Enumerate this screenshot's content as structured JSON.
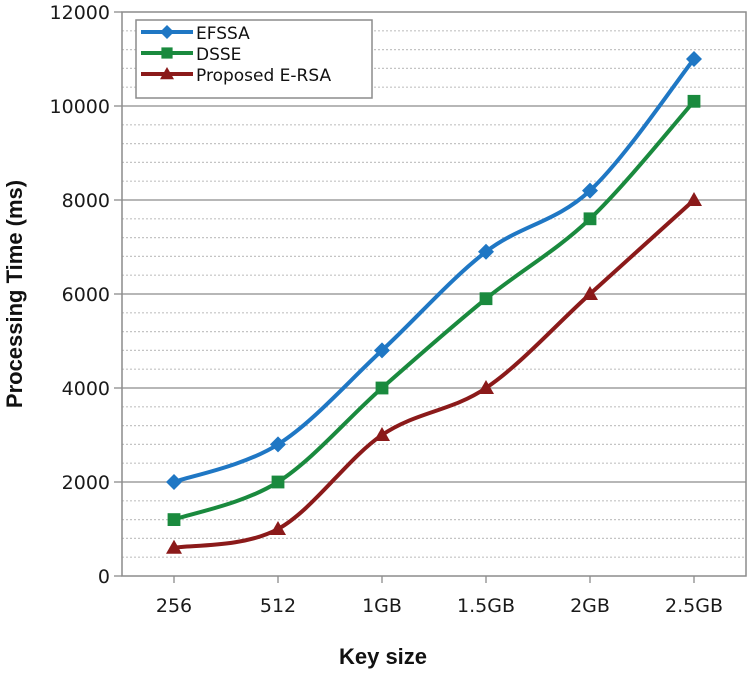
{
  "chart_data": {
    "type": "line",
    "title": "",
    "xlabel": "Key size",
    "ylabel": "Processing Time (ms)",
    "categories": [
      "256",
      "512",
      "1GB",
      "1.5GB",
      "2GB",
      "2.5GB"
    ],
    "ylim": [
      0,
      12000
    ],
    "yticks": [
      0,
      2000,
      4000,
      6000,
      8000,
      10000,
      12000
    ],
    "ytick_labels": [
      "0",
      "2000",
      "4000",
      "6000",
      "8000",
      "10000",
      "12000"
    ],
    "minor_grid_step": 400,
    "grid": true,
    "legend_position": "top-left",
    "series": [
      {
        "name": "EFSSA",
        "color": "#1f77c4",
        "marker": "diamond",
        "values": [
          2000,
          2800,
          4800,
          6900,
          8200,
          11000
        ]
      },
      {
        "name": "DSSE",
        "color": "#1a8a3e",
        "marker": "square",
        "values": [
          1200,
          2000,
          4000,
          5900,
          7600,
          10100
        ]
      },
      {
        "name": "Proposed E-RSA",
        "color": "#8b1a1a",
        "marker": "triangle",
        "values": [
          600,
          1000,
          3000,
          4000,
          6000,
          8000
        ]
      }
    ]
  }
}
